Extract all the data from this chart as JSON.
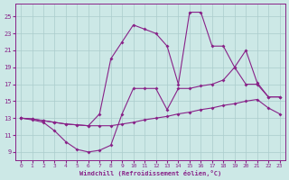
{
  "xlabel": "Windchill (Refroidissement éolien,°C)",
  "background_color": "#cce8e6",
  "grid_color": "#aacccc",
  "line_color": "#882288",
  "xmin": -0.5,
  "xmax": 23.5,
  "ymin": 8,
  "ymax": 26.5,
  "yticks": [
    9,
    11,
    13,
    15,
    17,
    19,
    21,
    23,
    25
  ],
  "xticks": [
    0,
    1,
    2,
    3,
    4,
    5,
    6,
    7,
    8,
    9,
    10,
    11,
    12,
    13,
    14,
    15,
    16,
    17,
    18,
    19,
    20,
    21,
    22,
    23
  ],
  "line1_x": [
    0,
    1,
    2,
    3,
    4,
    5,
    6,
    7,
    8,
    9,
    10,
    11,
    12,
    13,
    14,
    15,
    16,
    17,
    18,
    19,
    20,
    21,
    22,
    23
  ],
  "line1_y": [
    13,
    12.8,
    12.5,
    11.5,
    10.2,
    9.3,
    9.0,
    9.2,
    9.8,
    13.5,
    16.5,
    16.5,
    16.5,
    14.0,
    16.5,
    16.5,
    16.8,
    17.0,
    17.5,
    19.0,
    17.0,
    17.0,
    15.5,
    15.5
  ],
  "line2_x": [
    0,
    1,
    2,
    3,
    4,
    5,
    6,
    7,
    8,
    9,
    10,
    11,
    12,
    13,
    14,
    15,
    16,
    17,
    18,
    19,
    20,
    21,
    22,
    23
  ],
  "line2_y": [
    13,
    12.9,
    12.7,
    12.5,
    12.3,
    12.2,
    12.1,
    12.1,
    12.1,
    12.3,
    12.5,
    12.8,
    13.0,
    13.2,
    13.5,
    13.7,
    14.0,
    14.2,
    14.5,
    14.7,
    15.0,
    15.2,
    14.2,
    13.5
  ],
  "line3_x": [
    0,
    1,
    2,
    3,
    4,
    5,
    6,
    7,
    8,
    9,
    10,
    11,
    12,
    13,
    14,
    15,
    16,
    17,
    18,
    19,
    20,
    21,
    22,
    23
  ],
  "line3_y": [
    13,
    12.9,
    12.7,
    12.5,
    12.3,
    12.2,
    12.1,
    13.5,
    20.0,
    22.0,
    24.0,
    23.5,
    23.0,
    21.5,
    17.0,
    25.5,
    25.5,
    21.5,
    21.5,
    19.0,
    21.0,
    17.2,
    15.5,
    15.5
  ]
}
